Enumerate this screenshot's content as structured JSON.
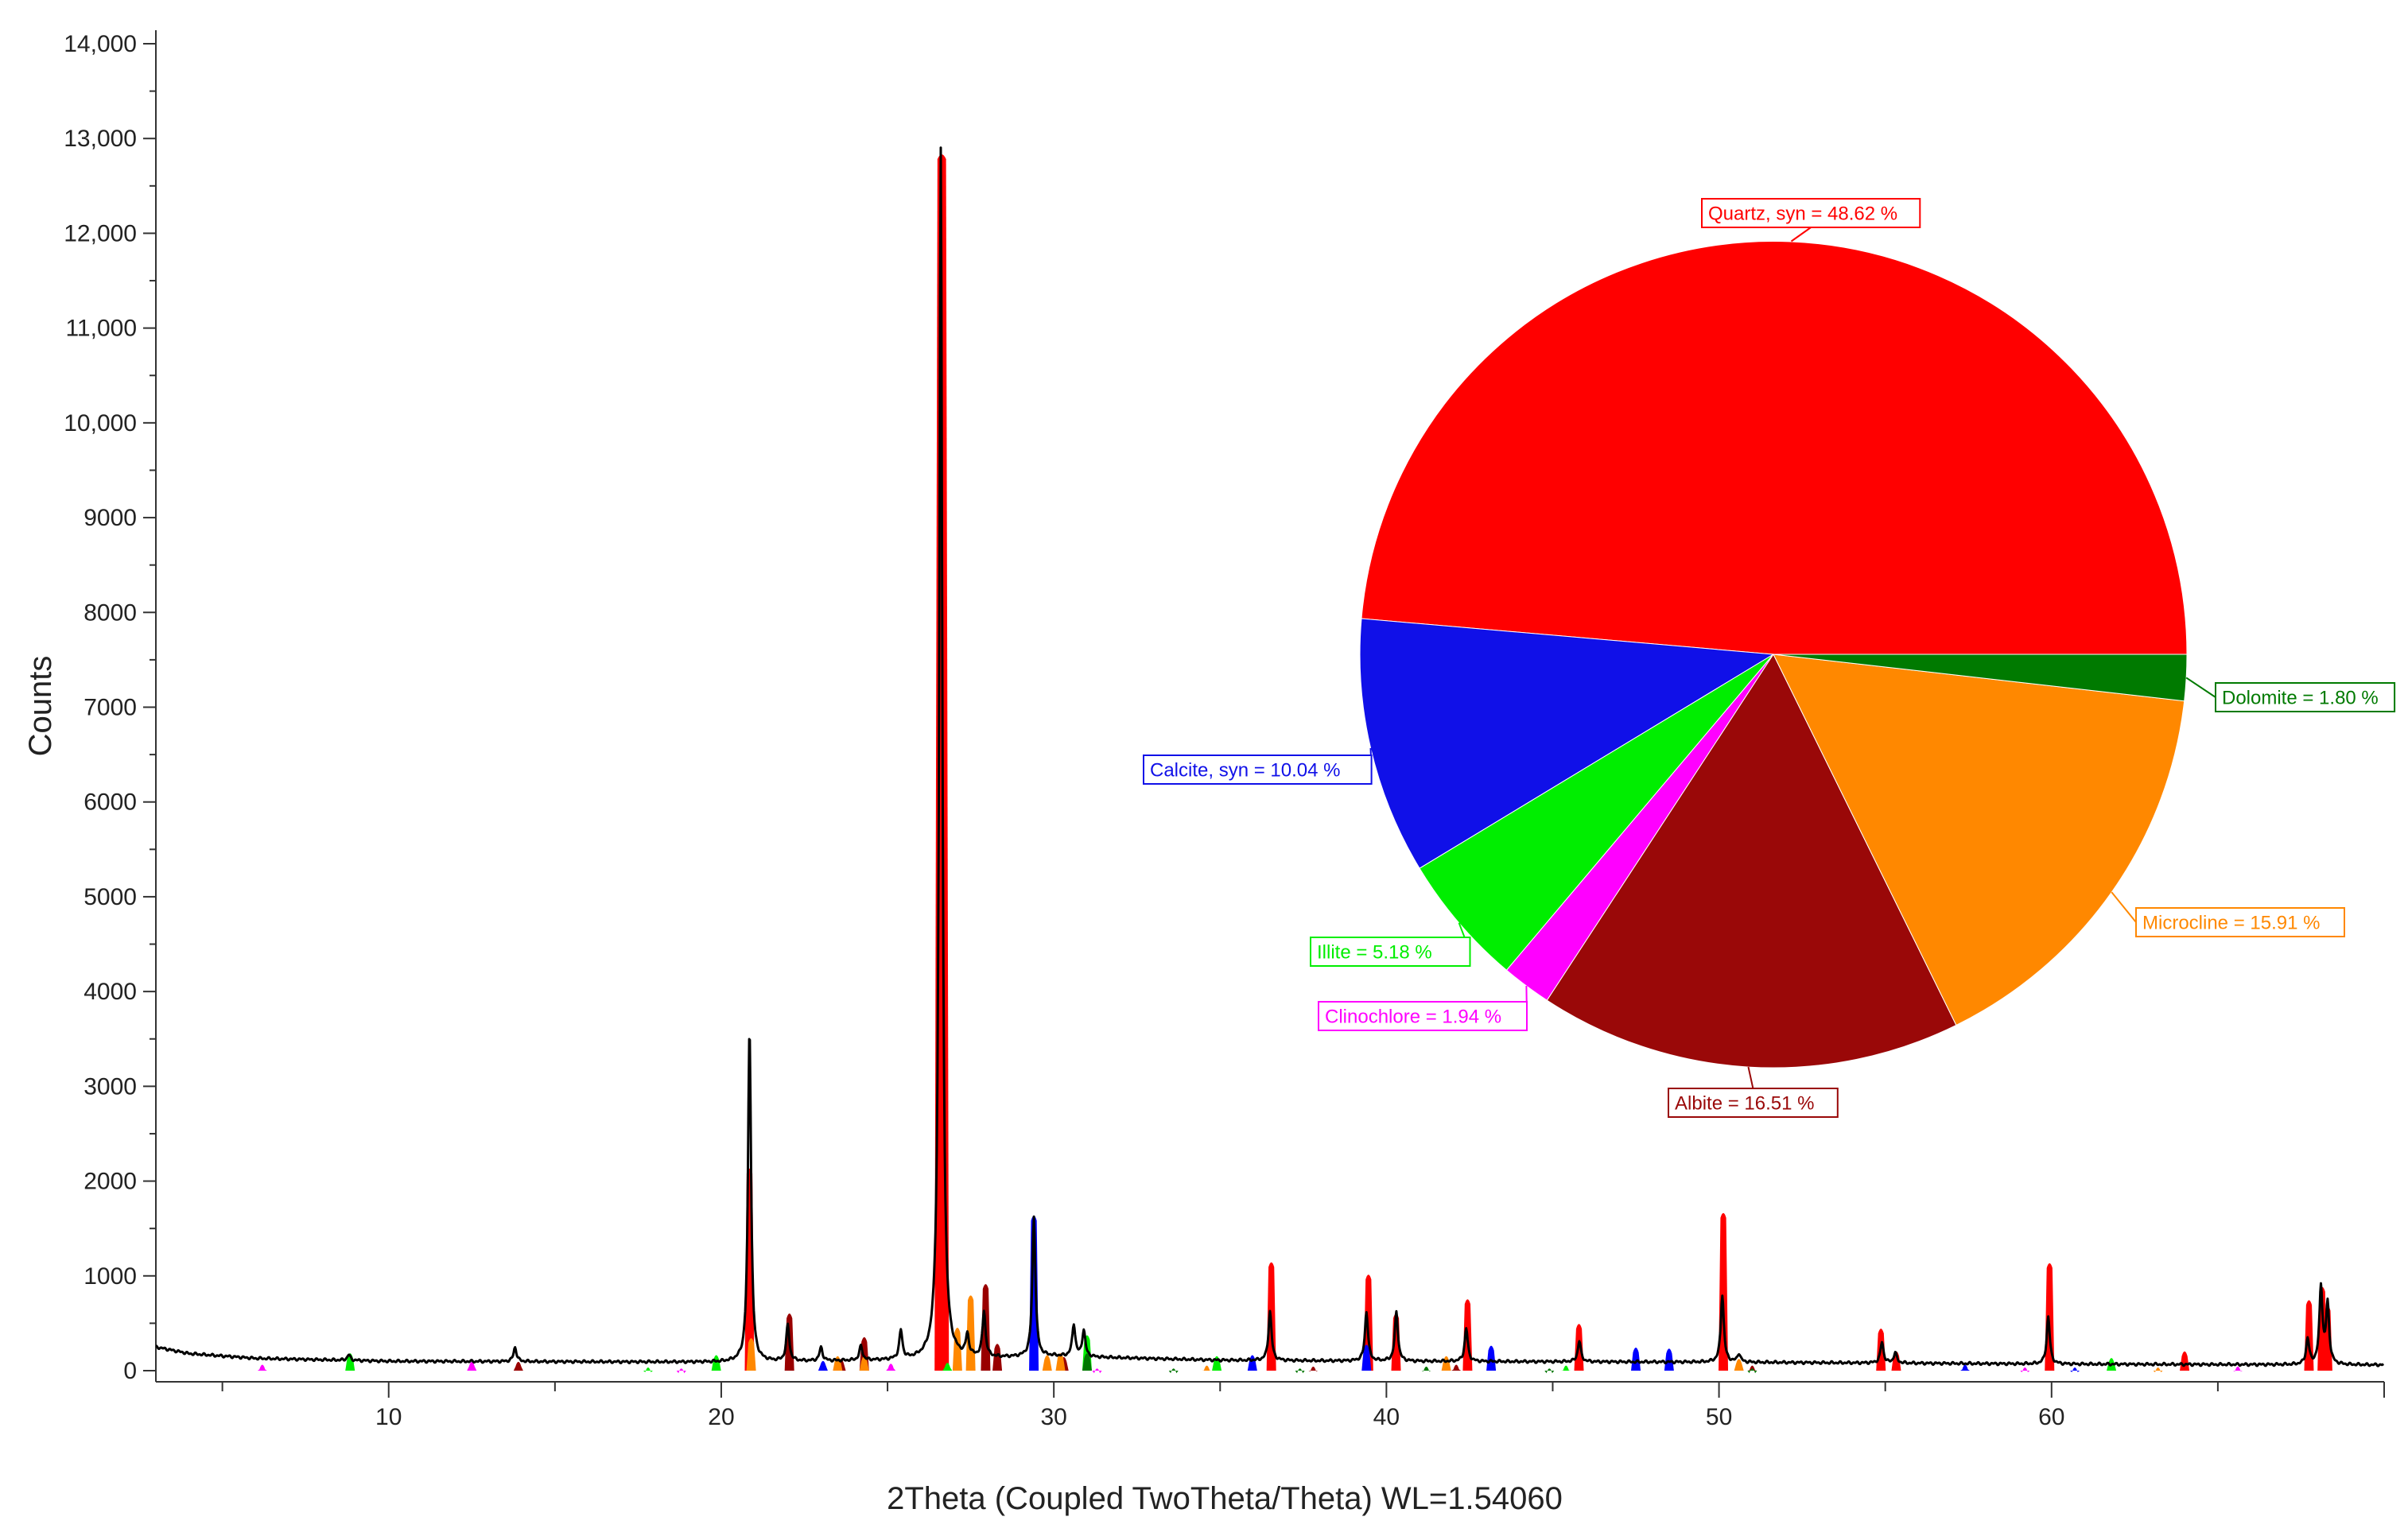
{
  "chart_data": [
    {
      "type": "line",
      "title": "",
      "xlabel": "2Theta (Coupled TwoTheta/Theta) WL=1.54060",
      "ylabel": "Counts",
      "xlim": [
        3,
        70
      ],
      "ylim": [
        0,
        14000
      ],
      "x_ticks": [
        10,
        20,
        30,
        40,
        50,
        60
      ],
      "y_ticks": [
        {
          "value": 0,
          "label": "0"
        },
        {
          "value": 1000,
          "label": "1000"
        },
        {
          "value": 2000,
          "label": "2000"
        },
        {
          "value": 3000,
          "label": "3000"
        },
        {
          "value": 4000,
          "label": "4000"
        },
        {
          "value": 5000,
          "label": "5000"
        },
        {
          "value": 6000,
          "label": "6000"
        },
        {
          "value": 7000,
          "label": "7000"
        },
        {
          "value": 8000,
          "label": "8000"
        },
        {
          "value": 9000,
          "label": "9000"
        },
        {
          "value": 10000,
          "label": "10,000"
        },
        {
          "value": 11000,
          "label": "11,000"
        },
        {
          "value": 12000,
          "label": "12,000"
        },
        {
          "value": 13000,
          "label": "13,000"
        },
        {
          "value": 14000,
          "label": "14,000"
        }
      ],
      "grid": false,
      "measured_pattern": {
        "color": "#000000",
        "background": [
          [
            3,
            250
          ],
          [
            4,
            180
          ],
          [
            6,
            130
          ],
          [
            10,
            100
          ],
          [
            20,
            90
          ],
          [
            26,
            110
          ],
          [
            30,
            150
          ],
          [
            35,
            110
          ],
          [
            40,
            100
          ],
          [
            50,
            90
          ],
          [
            60,
            70
          ],
          [
            70,
            60
          ]
        ],
        "peaks": [
          [
            8.8,
            60
          ],
          [
            13.8,
            150
          ],
          [
            20.85,
            3520
          ],
          [
            22.0,
            380
          ],
          [
            23.0,
            140
          ],
          [
            24.2,
            150
          ],
          [
            25.4,
            300
          ],
          [
            26.6,
            12780
          ],
          [
            27.4,
            220
          ],
          [
            27.9,
            480
          ],
          [
            29.4,
            1480
          ],
          [
            30.6,
            340
          ],
          [
            30.9,
            280
          ],
          [
            36.5,
            520
          ],
          [
            39.4,
            520
          ],
          [
            40.3,
            520
          ],
          [
            42.4,
            350
          ],
          [
            45.8,
            220
          ],
          [
            50.1,
            710
          ],
          [
            50.6,
            90
          ],
          [
            54.9,
            220
          ],
          [
            55.3,
            110
          ],
          [
            59.9,
            500
          ],
          [
            67.7,
            270
          ],
          [
            68.1,
            820
          ],
          [
            68.3,
            630
          ]
        ]
      },
      "phase_markers": [
        {
          "phase": "Quartz, syn",
          "color": "#ff0000",
          "x": [
            20.85,
            26.63,
            36.54,
            39.46,
            40.29,
            42.44,
            45.79,
            50.13,
            54.87,
            55.33,
            59.94,
            64.0,
            67.74,
            68.14,
            68.3
          ],
          "y": [
            2150,
            12850,
            1160,
            1030,
            620,
            770,
            510,
            1680,
            460,
            220,
            1150,
            220,
            760,
            900,
            700
          ]
        },
        {
          "phase": "Calcite, syn",
          "color": "#0000ff",
          "x": [
            23.06,
            29.4,
            35.97,
            39.4,
            43.15,
            47.5,
            48.5,
            57.4,
            60.7
          ],
          "y": [
            120,
            1650,
            180,
            290,
            280,
            260,
            250,
            80,
            50
          ]
        },
        {
          "phase": "Illite",
          "color": "#00ee00",
          "x": [
            8.84,
            17.8,
            19.85,
            26.8,
            31.0,
            34.9,
            45.4,
            61.8
          ],
          "y": [
            200,
            50,
            180,
            100,
            390,
            170,
            70,
            150
          ]
        },
        {
          "phase": "Clinochlore",
          "color": "#ff00ff",
          "x": [
            6.2,
            12.5,
            18.8,
            25.1,
            31.3,
            59.2,
            65.6
          ],
          "y": [
            80,
            110,
            40,
            90,
            40,
            50,
            60
          ]
        },
        {
          "phase": "Albite",
          "color": "#990000",
          "x": [
            13.9,
            22.05,
            23.6,
            24.3,
            27.95,
            28.3,
            30.3,
            37.8,
            42.1,
            51.0
          ],
          "y": [
            110,
            620,
            140,
            370,
            930,
            300,
            160,
            60,
            80,
            70
          ]
        },
        {
          "phase": "Microcline",
          "color": "#ff8800",
          "x": [
            20.9,
            23.5,
            24.3,
            27.1,
            27.5,
            29.8,
            30.2,
            34.6,
            41.8,
            50.6,
            63.2
          ],
          "y": [
            360,
            170,
            170,
            470,
            810,
            180,
            200,
            70,
            170,
            140,
            50
          ]
        },
        {
          "phase": "Dolomite",
          "color": "#007700",
          "x": [
            31.0,
            33.6,
            37.4,
            41.2,
            44.9,
            51.0
          ],
          "y": [
            200,
            40,
            40,
            60,
            40,
            40
          ]
        }
      ]
    },
    {
      "type": "pie",
      "title": "",
      "slices": [
        {
          "label": "Quartz, syn = 48.62 %",
          "value": 48.62,
          "color": "#ff0000"
        },
        {
          "label": "Calcite, syn = 10.04 %",
          "value": 10.04,
          "color": "#1010e8"
        },
        {
          "label": "Illite = 5.18 %",
          "value": 5.18,
          "color": "#00ee00"
        },
        {
          "label": "Clinochlore = 1.94 %",
          "value": 1.94,
          "color": "#ff00ff"
        },
        {
          "label": "Albite = 16.51 %",
          "value": 16.51,
          "color": "#9a0808"
        },
        {
          "label": "Microcline = 15.91 %",
          "value": 15.91,
          "color": "#ff8800"
        },
        {
          "label": "Dolomite = 1.80 %",
          "value": 1.8,
          "color": "#007a00"
        }
      ]
    }
  ]
}
